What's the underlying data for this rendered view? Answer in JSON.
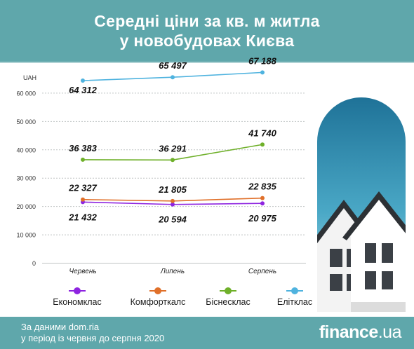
{
  "title": {
    "line1": "Середні ціни за кв. м житла",
    "line2": "у новобудовах Києва"
  },
  "footer": {
    "source_line1": "За даними dom.ria",
    "source_line2": "у період із червня до серпня 2020",
    "logo_main": "finance",
    "logo_ua": ".ua"
  },
  "colors": {
    "header_bg": "#5fa7ab",
    "economy": "#8e24e0",
    "comfort": "#e0702a",
    "business": "#6fb02a",
    "elite": "#4fb3df"
  },
  "icons": [
    "houses-illustration"
  ],
  "chart_data": {
    "type": "line",
    "title": "Середні ціни за кв. м житла у новобудовах Києва",
    "ylabel": "UAH",
    "xlabel": "",
    "categories": [
      "Червень",
      "Липень",
      "Серпень"
    ],
    "yticks": [
      0,
      10000,
      20000,
      30000,
      40000,
      50000,
      60000
    ],
    "ytick_labels": [
      "0",
      "10 000",
      "20 000",
      "30 000",
      "40 000",
      "50 000",
      "60 000"
    ],
    "ylim": [
      0,
      70000
    ],
    "grid": true,
    "legend_position": "bottom",
    "series": [
      {
        "name": "Економклас",
        "color": "#8e24e0",
        "values": [
          21432,
          20594,
          20975
        ],
        "labels": [
          "21 432",
          "20 594",
          "20 975"
        ],
        "label_side": "below"
      },
      {
        "name": "Комфорткалс",
        "color": "#e0702a",
        "values": [
          22327,
          21805,
          22835
        ],
        "labels": [
          "22 327",
          "21 805",
          "22 835"
        ],
        "label_side": "above"
      },
      {
        "name": "Біснесклас",
        "color": "#6fb02a",
        "values": [
          36383,
          36291,
          41740
        ],
        "labels": [
          "36 383",
          "36 291",
          "41 740"
        ],
        "label_side": "above"
      },
      {
        "name": "Елітклас",
        "color": "#4fb3df",
        "values": [
          64312,
          65497,
          67188
        ],
        "labels": [
          "64 312",
          "65 497",
          "67 188"
        ],
        "label_side": "mixed"
      }
    ]
  }
}
